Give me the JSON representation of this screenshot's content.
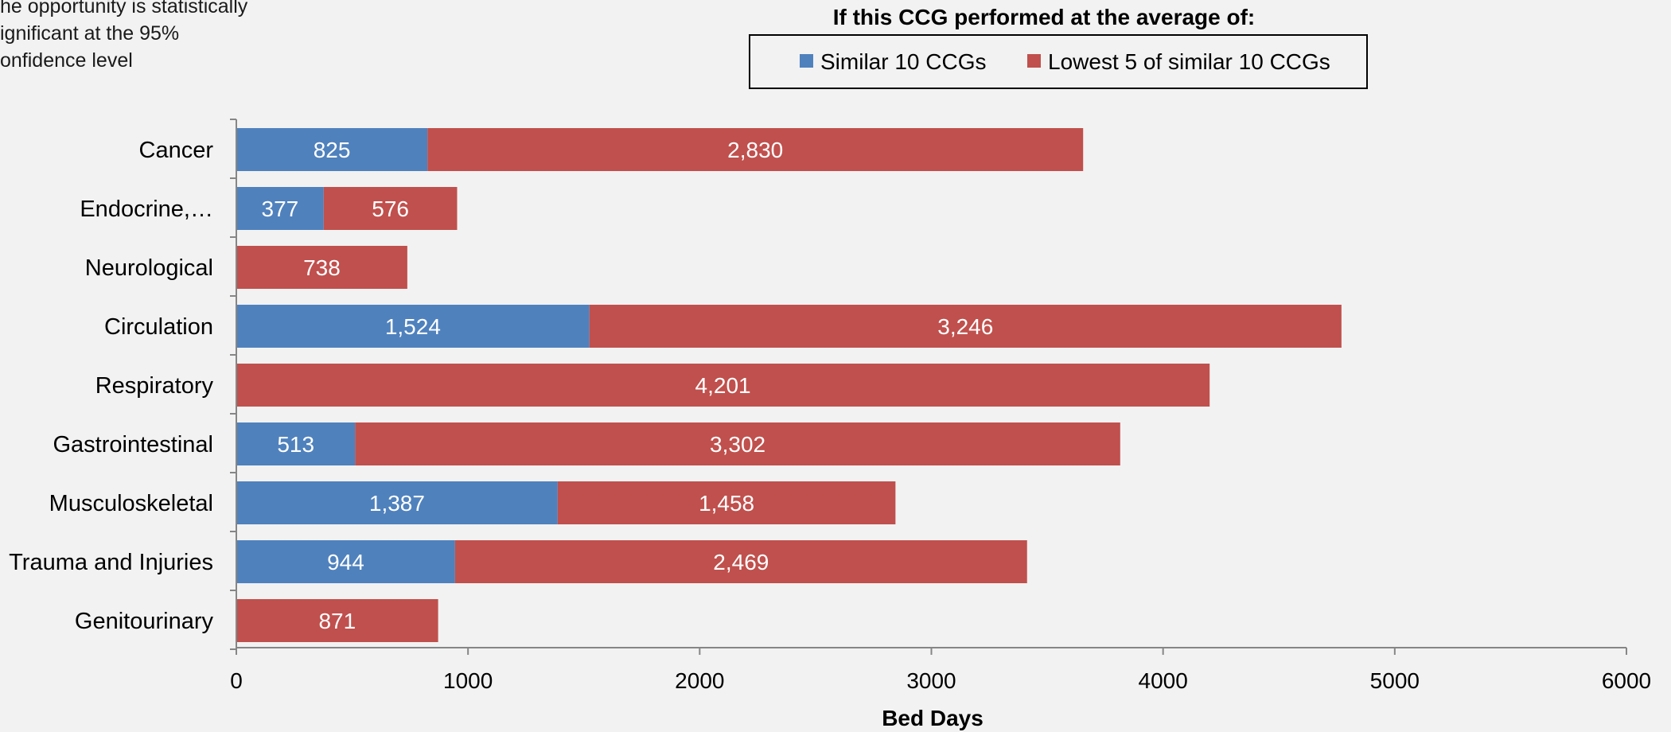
{
  "note": {
    "lines": [
      "he opportunity is statistically",
      "ignificant at the 95%",
      "onfidence level"
    ]
  },
  "legend": {
    "title": "If this CCG performed at the average of:",
    "placement": "top-center"
  },
  "chart_data": {
    "type": "bar",
    "orientation": "horizontal",
    "stacked": true,
    "categories": [
      "Cancer",
      "Endocrine,…",
      "Neurological",
      "Circulation",
      "Respiratory",
      "Gastrointestinal",
      "Musculoskeletal",
      "Trauma and Injuries",
      "Genitourinary"
    ],
    "series": [
      {
        "name": "Similar 10 CCGs",
        "color": "#4f81bd",
        "values": [
          825,
          377,
          0,
          1524,
          0,
          513,
          1387,
          944,
          0
        ],
        "labels": [
          "825",
          "377",
          "",
          "1,524",
          "",
          "513",
          "1,387",
          "944",
          ""
        ]
      },
      {
        "name": "Lowest 5 of similar 10 CCGs",
        "color": "#c0504d",
        "values": [
          2830,
          576,
          738,
          3246,
          4201,
          3302,
          1458,
          2469,
          871
        ],
        "labels": [
          "2,830",
          "576",
          "738",
          "3,246",
          "4,201",
          "3,302",
          "1,458",
          "2,469",
          "871"
        ]
      }
    ],
    "xlabel": "Bed Days",
    "ylabel": "",
    "xlim": [
      0,
      6000
    ],
    "xticks": [
      0,
      1000,
      2000,
      3000,
      4000,
      5000,
      6000
    ],
    "grid": false
  }
}
